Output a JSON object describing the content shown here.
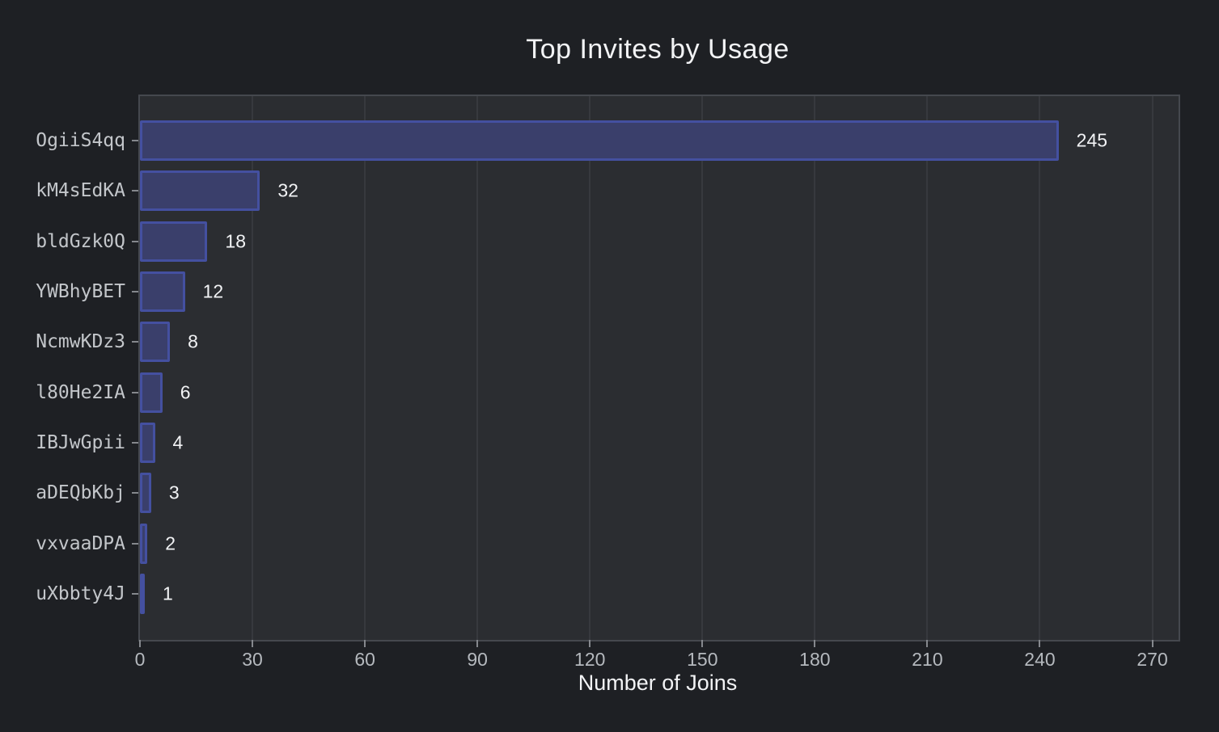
{
  "title": "Top Invites by Usage",
  "xlabel": "Number of Joins",
  "chart_data": {
    "type": "bar",
    "orientation": "horizontal",
    "title": "Top Invites by Usage",
    "xlabel": "Number of Joins",
    "ylabel": "",
    "categories": [
      "OgiiS4qq",
      "kM4sEdKA",
      "bldGzk0Q",
      "YWBhyBET",
      "NcmwKDz3",
      "l80He2IA",
      "IBJwGpii",
      "aDEQbKbj",
      "vxvaaDPA",
      "uXbbty4J"
    ],
    "values": [
      245,
      32,
      18,
      12,
      8,
      6,
      4,
      3,
      2,
      1
    ],
    "value_labels": [
      "245",
      "32",
      "18",
      "12",
      "8",
      "6",
      "4",
      "3",
      "2",
      "1"
    ],
    "x_ticks": [
      0,
      30,
      60,
      90,
      120,
      150,
      180,
      210,
      240,
      270
    ],
    "xlim": [
      0,
      277
    ],
    "grid": "vertical",
    "legend": "none"
  },
  "colors": {
    "figure_bg": "#1e2024",
    "plot_bg": "#2b2d31",
    "bar_fill": "#3a3f6b",
    "bar_border": "#4450a0",
    "gridline": "#37393e",
    "spine": "#45484e",
    "x_tick_text": "#b5b9be",
    "y_tick_text": "#c3c6ca",
    "title_text": "#f2f3f5",
    "value_text": "#f2f3f5"
  }
}
